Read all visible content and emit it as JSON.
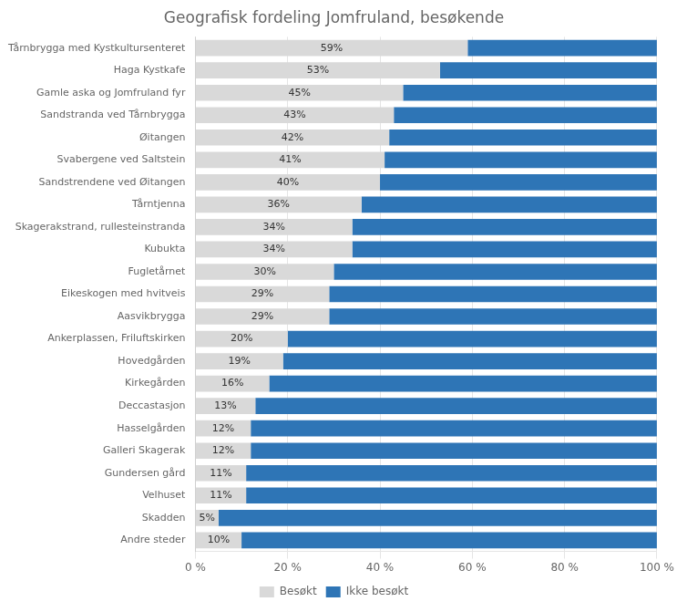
{
  "chart_data": {
    "type": "bar",
    "orientation": "horizontal",
    "stacked": true,
    "title": "Geografisk fordeling Jomfruland, besøkende",
    "categories": [
      "Tårnbrygga med Kystkultursenteret",
      "Haga Kystkafe",
      "Gamle aska og Jomfruland fyr",
      "Sandstranda ved Tårnbrygga",
      "Øitangen",
      "Svabergene ved Saltstein",
      "Sandstrendene ved Øitangen",
      "Tårntjenna",
      "Skagerakstrand, rullesteinstranda",
      "Kubukta",
      "Fugletårnet",
      "Eikeskogen med hvitveis",
      "Aasvikbrygga",
      "Ankerplassen, Friluftskirken",
      "Hovedgården",
      "Kirkegården",
      "Deccastasjon",
      "Hasselgården",
      "Galleri Skagerak",
      "Gundersen gård",
      "Velhuset",
      "Skadden",
      "Andre steder"
    ],
    "series": [
      {
        "name": "Besøkt",
        "color": "#d9d9d9",
        "data_labels": true,
        "values": [
          59,
          53,
          45,
          43,
          42,
          41,
          40,
          36,
          34,
          34,
          30,
          29,
          29,
          20,
          19,
          16,
          13,
          12,
          12,
          11,
          11,
          5,
          10
        ],
        "value_labels": [
          "59%",
          "53%",
          "45%",
          "43%",
          "42%",
          "41%",
          "40%",
          "36%",
          "34%",
          "34%",
          "30%",
          "29%",
          "29%",
          "20%",
          "19%",
          "16%",
          "13%",
          "12%",
          "12%",
          "11%",
          "11%",
          "5%",
          "10%"
        ]
      },
      {
        "name": "Ikke besøkt",
        "color": "#2e75b6",
        "values": [
          41,
          47,
          55,
          57,
          58,
          59,
          60,
          64,
          66,
          66,
          70,
          71,
          71,
          80,
          81,
          84,
          87,
          88,
          88,
          89,
          89,
          95,
          90
        ]
      }
    ],
    "xlim": [
      0,
      100
    ],
    "xticks": [
      {
        "value": 0,
        "label": "0 %"
      },
      {
        "value": 20,
        "label": "20 %"
      },
      {
        "value": 40,
        "label": "40 %"
      },
      {
        "value": 60,
        "label": "60 %"
      },
      {
        "value": 80,
        "label": "80 %"
      },
      {
        "value": 100,
        "label": "100 %"
      }
    ],
    "grid": true,
    "legend": "bottom"
  }
}
